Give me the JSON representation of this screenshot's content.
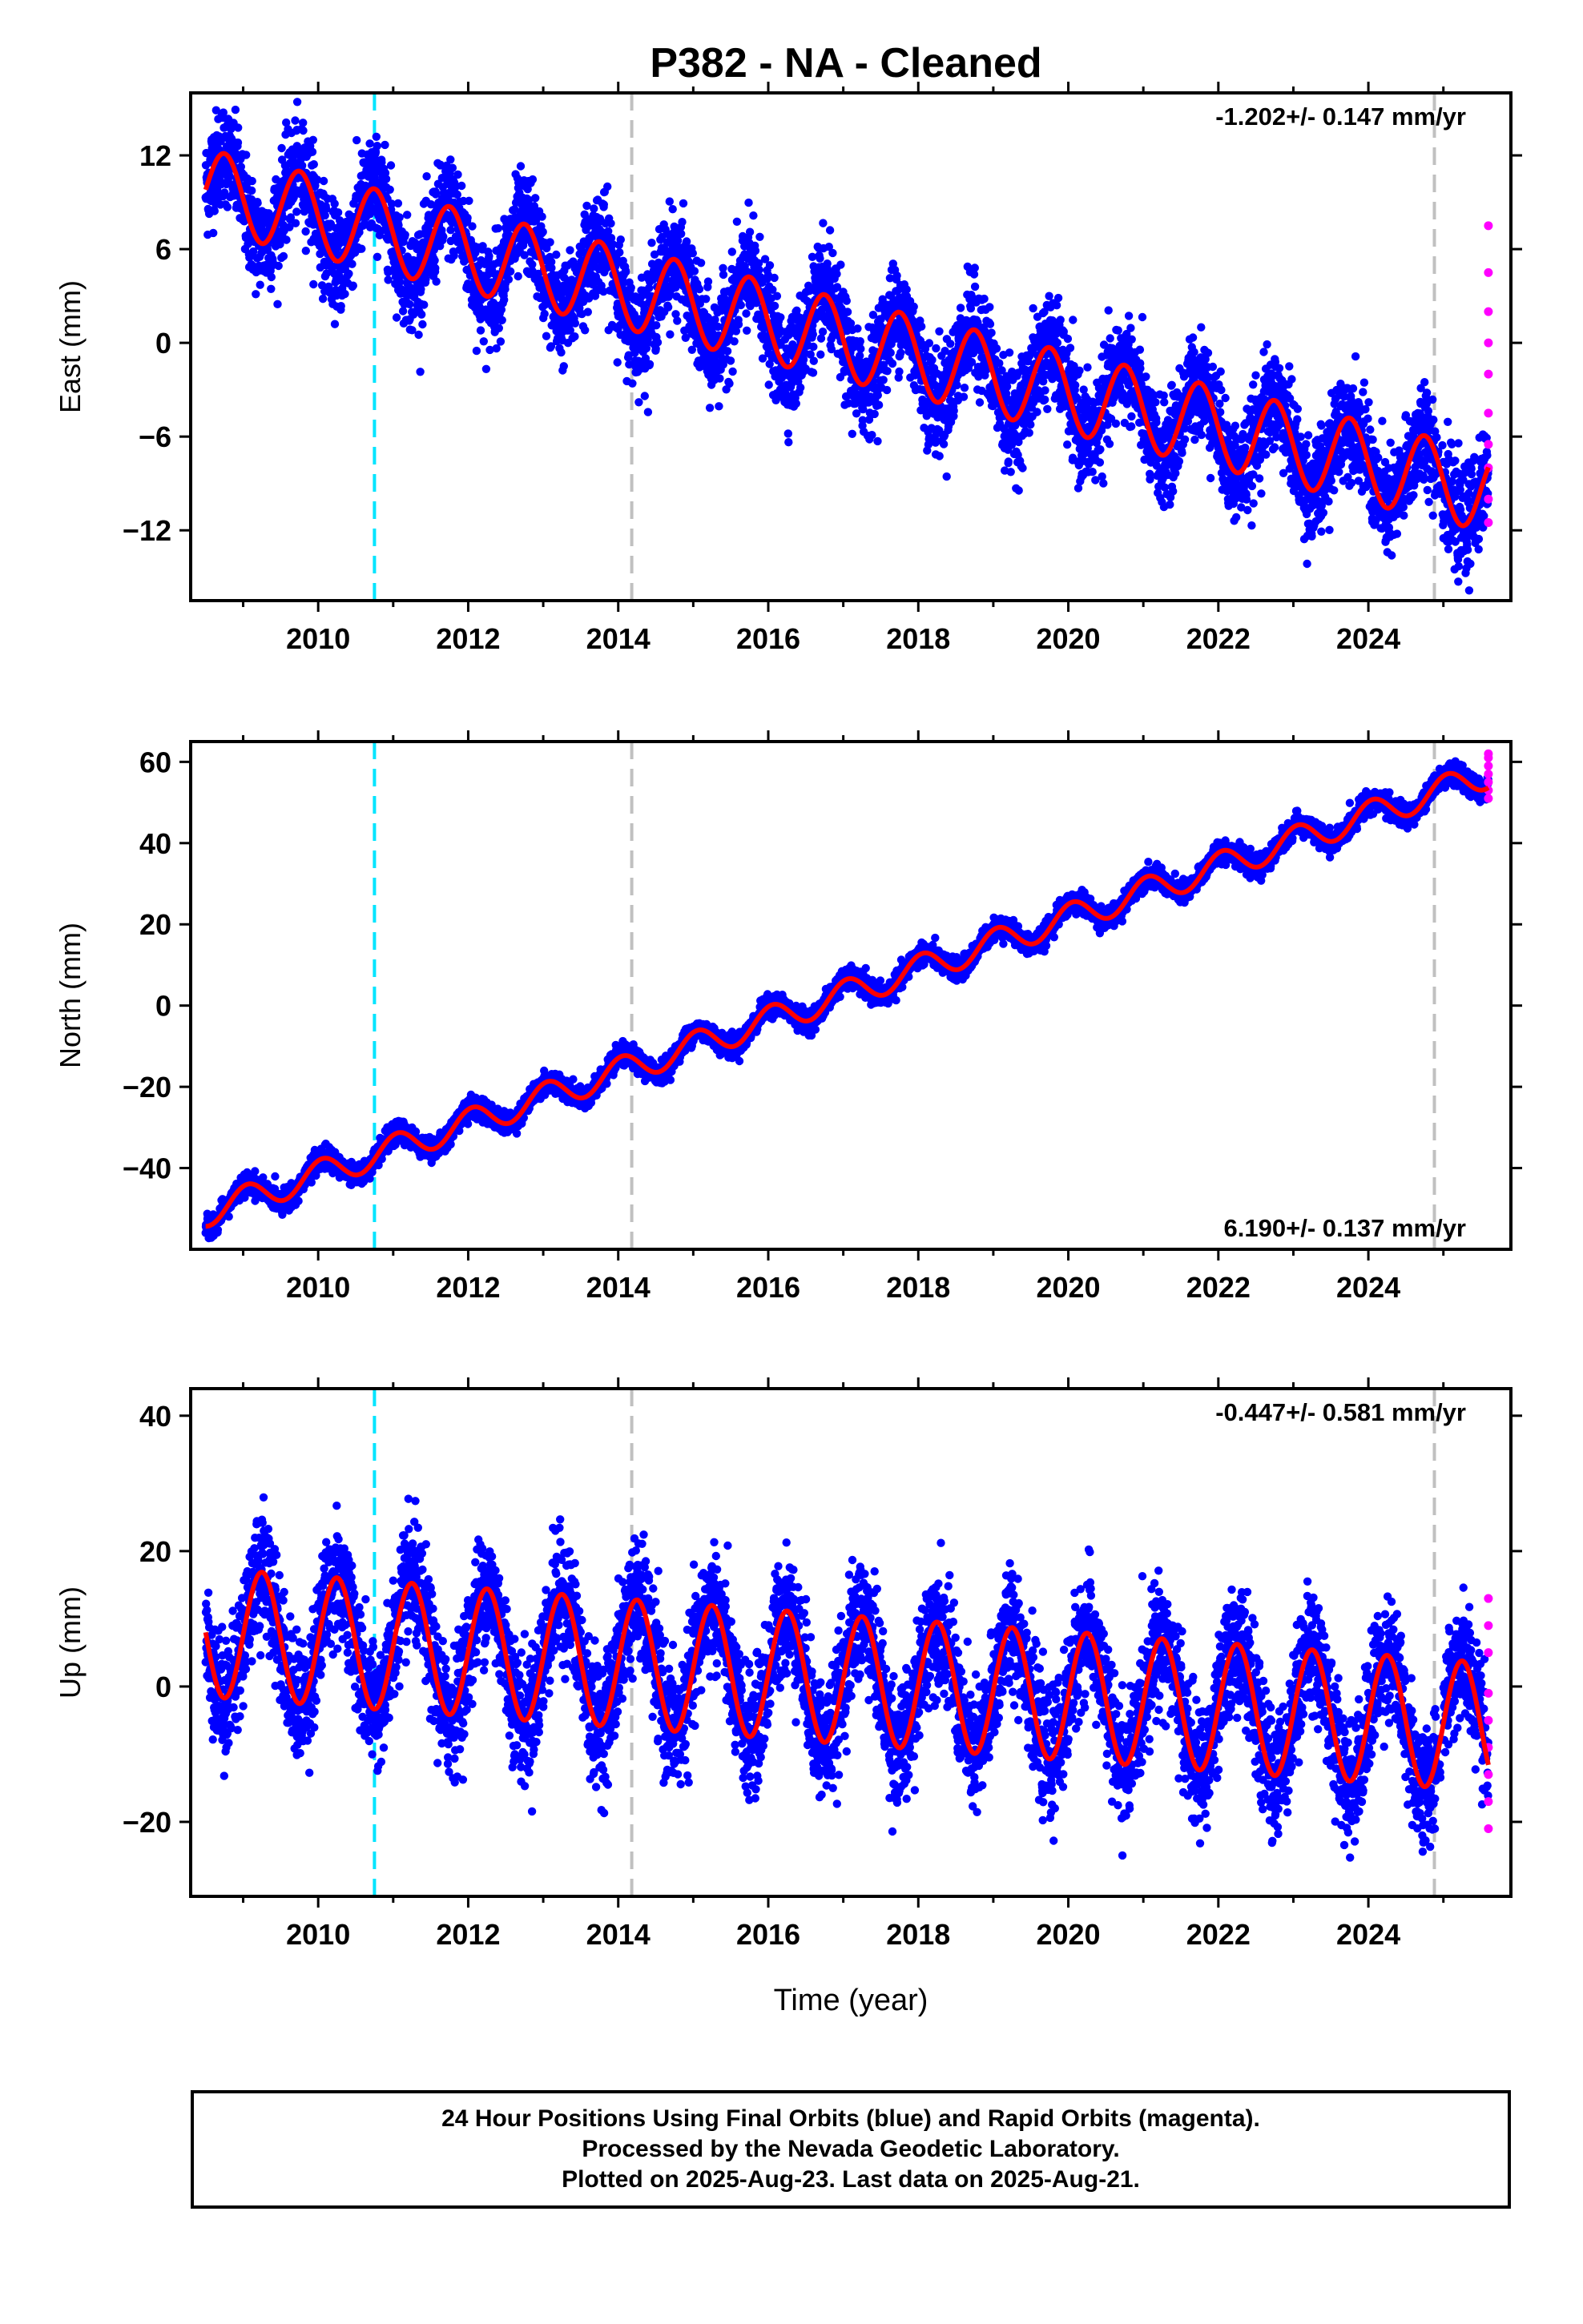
{
  "title": "P382  - NA - Cleaned",
  "xlabel": "Time (year)",
  "colors": {
    "final_orbits": "#0000ff",
    "rapid_orbits": "#ff00ff",
    "model": "#ff0000",
    "event_cyan": "#00e5ff",
    "event_gray": "#c0c0c0"
  },
  "footer": {
    "line1": "24 Hour Positions Using Final Orbits (blue) and Rapid Orbits (magenta).",
    "line2": "Processed by the Nevada Geodetic Laboratory.",
    "line3": "Plotted on 2025-Aug-23. Last data on 2025-Aug-21."
  },
  "chart_data": [
    {
      "type": "scatter",
      "component": "east",
      "ylabel": "East (mm)",
      "rate_label": "-1.202+/- 0.147 mm/yr",
      "xlim": [
        2008.3,
        2025.9
      ],
      "ylim": [
        -16.5,
        16
      ],
      "yticks": [
        -12,
        -6,
        0,
        6,
        12
      ],
      "xticks": [
        2010,
        2012,
        2014,
        2016,
        2018,
        2020,
        2022,
        2024
      ],
      "event_lines": [
        {
          "x": 2010.75,
          "color": "cyan"
        },
        {
          "x": 2014.18,
          "color": "gray"
        },
        {
          "x": 2024.88,
          "color": "gray"
        }
      ],
      "model": {
        "t0": 2008.5,
        "t1": 2025.6,
        "start_value": 9.8,
        "end_value": -9.5,
        "annual_amplitude": 2.6,
        "phase_peak": 0.25
      },
      "scatter": {
        "noise_sd": 1.6
      },
      "rapid_points": [
        -11.5,
        -10,
        -8,
        -6.5,
        -4.5,
        -2,
        0,
        2,
        4.5,
        7.5
      ]
    },
    {
      "type": "scatter",
      "component": "north",
      "ylabel": "North (mm)",
      "rate_label": "6.190+/- 0.137 mm/yr",
      "xlim": [
        2008.3,
        2025.9
      ],
      "ylim": [
        -60,
        65
      ],
      "yticks": [
        -40,
        -20,
        0,
        20,
        40,
        60
      ],
      "xticks": [
        2010,
        2012,
        2014,
        2016,
        2018,
        2020,
        2022,
        2024
      ],
      "event_lines": [
        {
          "x": 2010.75,
          "color": "cyan"
        },
        {
          "x": 2014.18,
          "color": "gray"
        },
        {
          "x": 2024.88,
          "color": "gray"
        }
      ],
      "model": {
        "t0": 2008.5,
        "t1": 2025.6,
        "start_value": -51,
        "end_value": 57,
        "annual_amplitude": 3.5,
        "phase_peak": 0.55
      },
      "scatter": {
        "noise_sd": 1.3
      },
      "rapid_points": [
        51,
        53,
        55,
        57,
        59,
        61,
        62
      ]
    },
    {
      "type": "scatter",
      "component": "up",
      "ylabel": "Up (mm)",
      "rate_label": "-0.447+/- 0.581 mm/yr",
      "xlim": [
        2008.3,
        2025.9
      ],
      "ylim": [
        -31,
        44
      ],
      "yticks": [
        -20,
        0,
        20,
        40
      ],
      "xticks": [
        2010,
        2012,
        2014,
        2016,
        2018,
        2020,
        2022,
        2024
      ],
      "event_lines": [
        {
          "x": 2010.75,
          "color": "cyan"
        },
        {
          "x": 2014.18,
          "color": "gray"
        },
        {
          "x": 2024.88,
          "color": "gray"
        }
      ],
      "model": {
        "t0": 2008.5,
        "t1": 2025.6,
        "start_value": 8,
        "end_value": -6,
        "annual_amplitude": 9.5,
        "phase_peak": 0.75
      },
      "scatter": {
        "noise_sd": 4.5
      },
      "rapid_points": [
        -21,
        -17,
        -13,
        -9,
        -5,
        -1,
        5,
        9,
        13
      ]
    }
  ]
}
